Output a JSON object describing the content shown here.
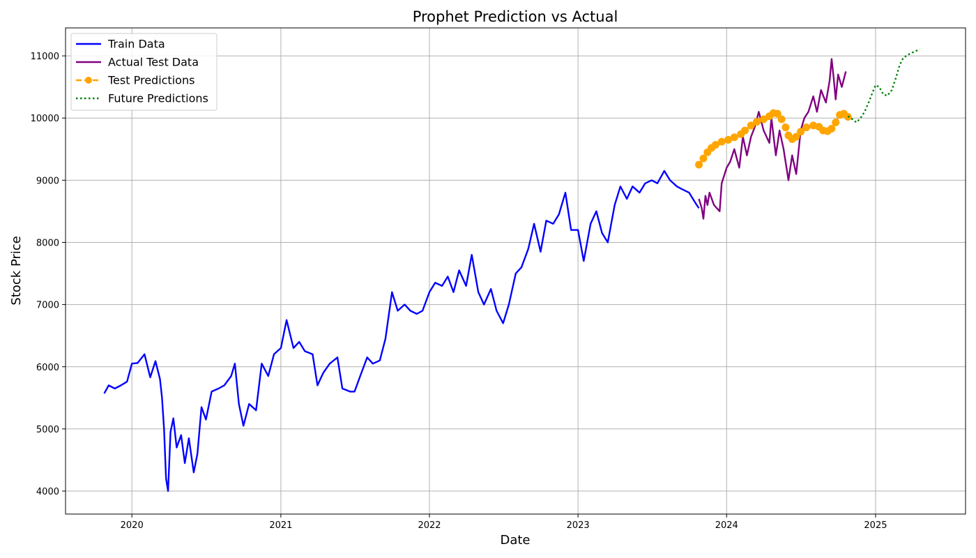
{
  "chart_data": {
    "type": "line",
    "title": "Prophet Prediction vs Actual",
    "xlabel": "Date",
    "ylabel": "Stock Price",
    "x_axis_type": "date",
    "xlim": [
      "2019-07-22",
      "2025-08-10"
    ],
    "ylim": [
      3630,
      11450
    ],
    "x_ticks": [
      "2020",
      "2021",
      "2022",
      "2023",
      "2024",
      "2025"
    ],
    "y_ticks": [
      "4000",
      "5000",
      "6000",
      "7000",
      "8000",
      "9000",
      "10000",
      "11000"
    ],
    "grid": true,
    "legend_position": "top-left",
    "series": [
      {
        "name": "Train Data",
        "color": "#0000ff",
        "style": "solid",
        "points": [
          [
            "2019-10-25",
            5570
          ],
          [
            "2019-11-05",
            5700
          ],
          [
            "2019-11-20",
            5650
          ],
          [
            "2019-12-05",
            5700
          ],
          [
            "2019-12-20",
            5760
          ],
          [
            "2020-01-01",
            6050
          ],
          [
            "2020-01-15",
            6060
          ],
          [
            "2020-02-01",
            6200
          ],
          [
            "2020-02-15",
            5830
          ],
          [
            "2020-02-28",
            6090
          ],
          [
            "2020-03-10",
            5800
          ],
          [
            "2020-03-15",
            5500
          ],
          [
            "2020-03-20",
            5000
          ],
          [
            "2020-03-25",
            4200
          ],
          [
            "2020-03-30",
            4000
          ],
          [
            "2020-04-05",
            4950
          ],
          [
            "2020-04-12",
            5170
          ],
          [
            "2020-04-20",
            4700
          ],
          [
            "2020-05-01",
            4900
          ],
          [
            "2020-05-10",
            4450
          ],
          [
            "2020-05-20",
            4850
          ],
          [
            "2020-06-01",
            4300
          ],
          [
            "2020-06-10",
            4600
          ],
          [
            "2020-06-20",
            5350
          ],
          [
            "2020-07-01",
            5150
          ],
          [
            "2020-07-15",
            5600
          ],
          [
            "2020-08-01",
            5650
          ],
          [
            "2020-08-15",
            5700
          ],
          [
            "2020-09-01",
            5850
          ],
          [
            "2020-09-10",
            6050
          ],
          [
            "2020-09-20",
            5400
          ],
          [
            "2020-10-01",
            5050
          ],
          [
            "2020-10-15",
            5400
          ],
          [
            "2020-11-01",
            5300
          ],
          [
            "2020-11-15",
            6050
          ],
          [
            "2020-12-01",
            5850
          ],
          [
            "2020-12-15",
            6200
          ],
          [
            "2021-01-01",
            6300
          ],
          [
            "2021-01-15",
            6750
          ],
          [
            "2021-02-01",
            6300
          ],
          [
            "2021-02-15",
            6400
          ],
          [
            "2021-03-01",
            6250
          ],
          [
            "2021-03-20",
            6200
          ],
          [
            "2021-04-01",
            5700
          ],
          [
            "2021-04-15",
            5900
          ],
          [
            "2021-05-01",
            6050
          ],
          [
            "2021-05-20",
            6150
          ],
          [
            "2021-06-01",
            5650
          ],
          [
            "2021-06-20",
            5600
          ],
          [
            "2021-07-01",
            5600
          ],
          [
            "2021-07-15",
            5850
          ],
          [
            "2021-08-01",
            6150
          ],
          [
            "2021-08-15",
            6050
          ],
          [
            "2021-09-01",
            6100
          ],
          [
            "2021-09-15",
            6450
          ],
          [
            "2021-10-01",
            7200
          ],
          [
            "2021-10-15",
            6900
          ],
          [
            "2021-11-01",
            7000
          ],
          [
            "2021-11-15",
            6900
          ],
          [
            "2021-12-01",
            6850
          ],
          [
            "2021-12-15",
            6900
          ],
          [
            "2022-01-01",
            7200
          ],
          [
            "2022-01-15",
            7350
          ],
          [
            "2022-02-01",
            7300
          ],
          [
            "2022-02-15",
            7450
          ],
          [
            "2022-03-01",
            7200
          ],
          [
            "2022-03-15",
            7550
          ],
          [
            "2022-04-01",
            7300
          ],
          [
            "2022-04-15",
            7800
          ],
          [
            "2022-05-01",
            7200
          ],
          [
            "2022-05-15",
            7000
          ],
          [
            "2022-06-01",
            7250
          ],
          [
            "2022-06-15",
            6900
          ],
          [
            "2022-07-01",
            6700
          ],
          [
            "2022-07-15",
            7000
          ],
          [
            "2022-08-01",
            7500
          ],
          [
            "2022-08-15",
            7600
          ],
          [
            "2022-09-01",
            7900
          ],
          [
            "2022-09-15",
            8300
          ],
          [
            "2022-10-01",
            7850
          ],
          [
            "2022-10-15",
            8350
          ],
          [
            "2022-11-01",
            8300
          ],
          [
            "2022-11-15",
            8450
          ],
          [
            "2022-12-01",
            8800
          ],
          [
            "2022-12-15",
            8200
          ],
          [
            "2023-01-01",
            8200
          ],
          [
            "2023-01-15",
            7700
          ],
          [
            "2023-02-01",
            8300
          ],
          [
            "2023-02-15",
            8500
          ],
          [
            "2023-03-01",
            8150
          ],
          [
            "2023-03-15",
            8000
          ],
          [
            "2023-04-01",
            8600
          ],
          [
            "2023-04-15",
            8900
          ],
          [
            "2023-05-01",
            8700
          ],
          [
            "2023-05-15",
            8900
          ],
          [
            "2023-06-01",
            8800
          ],
          [
            "2023-06-15",
            8950
          ],
          [
            "2023-07-01",
            9000
          ],
          [
            "2023-07-15",
            8950
          ],
          [
            "2023-08-01",
            9150
          ],
          [
            "2023-08-15",
            9000
          ],
          [
            "2023-09-01",
            8900
          ],
          [
            "2023-09-15",
            8850
          ],
          [
            "2023-10-01",
            8800
          ],
          [
            "2023-10-15",
            8650
          ],
          [
            "2023-10-25",
            8550
          ]
        ]
      },
      {
        "name": "Actual Test Data",
        "color": "#800080",
        "style": "solid",
        "points": [
          [
            "2023-10-25",
            8700
          ],
          [
            "2023-11-01",
            8550
          ],
          [
            "2023-11-05",
            8380
          ],
          [
            "2023-11-10",
            8750
          ],
          [
            "2023-11-15",
            8600
          ],
          [
            "2023-11-20",
            8800
          ],
          [
            "2023-12-01",
            8600
          ],
          [
            "2023-12-15",
            8500
          ],
          [
            "2023-12-20",
            8950
          ],
          [
            "2024-01-01",
            9200
          ],
          [
            "2024-01-10",
            9300
          ],
          [
            "2024-01-20",
            9500
          ],
          [
            "2024-02-01",
            9200
          ],
          [
            "2024-02-10",
            9700
          ],
          [
            "2024-02-20",
            9400
          ],
          [
            "2024-03-01",
            9700
          ],
          [
            "2024-03-10",
            9850
          ],
          [
            "2024-03-20",
            10100
          ],
          [
            "2024-04-01",
            9800
          ],
          [
            "2024-04-15",
            9600
          ],
          [
            "2024-04-20",
            10000
          ],
          [
            "2024-05-01",
            9400
          ],
          [
            "2024-05-10",
            9800
          ],
          [
            "2024-05-20",
            9500
          ],
          [
            "2024-06-01",
            9000
          ],
          [
            "2024-06-10",
            9400
          ],
          [
            "2024-06-20",
            9100
          ],
          [
            "2024-07-01",
            9800
          ],
          [
            "2024-07-10",
            10000
          ],
          [
            "2024-07-20",
            10100
          ],
          [
            "2024-08-01",
            10350
          ],
          [
            "2024-08-10",
            10100
          ],
          [
            "2024-08-20",
            10450
          ],
          [
            "2024-09-01",
            10250
          ],
          [
            "2024-09-10",
            10600
          ],
          [
            "2024-09-15",
            10950
          ],
          [
            "2024-09-20",
            10650
          ],
          [
            "2024-09-25",
            10300
          ],
          [
            "2024-10-01",
            10700
          ],
          [
            "2024-10-10",
            10500
          ],
          [
            "2024-10-20",
            10750
          ]
        ]
      },
      {
        "name": "Test Predictions",
        "color": "#ffa500",
        "style": "dashed-markers",
        "points": [
          [
            "2023-10-25",
            9250
          ],
          [
            "2023-11-05",
            9350
          ],
          [
            "2023-11-15",
            9450
          ],
          [
            "2023-11-25",
            9520
          ],
          [
            "2023-12-05",
            9570
          ],
          [
            "2023-12-20",
            9620
          ],
          [
            "2024-01-05",
            9650
          ],
          [
            "2024-01-20",
            9690
          ],
          [
            "2024-02-05",
            9740
          ],
          [
            "2024-02-15",
            9800
          ],
          [
            "2024-03-01",
            9880
          ],
          [
            "2024-03-15",
            9940
          ],
          [
            "2024-04-01",
            9980
          ],
          [
            "2024-04-15",
            10030
          ],
          [
            "2024-04-25",
            10080
          ],
          [
            "2024-05-05",
            10070
          ],
          [
            "2024-05-15",
            9980
          ],
          [
            "2024-05-25",
            9850
          ],
          [
            "2024-06-01",
            9720
          ],
          [
            "2024-06-10",
            9660
          ],
          [
            "2024-06-20",
            9700
          ],
          [
            "2024-07-01",
            9780
          ],
          [
            "2024-07-15",
            9850
          ],
          [
            "2024-08-01",
            9880
          ],
          [
            "2024-08-15",
            9860
          ],
          [
            "2024-08-25",
            9800
          ],
          [
            "2024-09-05",
            9790
          ],
          [
            "2024-09-15",
            9830
          ],
          [
            "2024-09-25",
            9930
          ],
          [
            "2024-10-05",
            10050
          ],
          [
            "2024-10-15",
            10070
          ],
          [
            "2024-10-25",
            10020
          ]
        ]
      },
      {
        "name": "Future Predictions",
        "color": "#008000",
        "style": "dotted",
        "points": [
          [
            "2024-10-25",
            10030
          ],
          [
            "2024-11-05",
            9980
          ],
          [
            "2024-11-15",
            9930
          ],
          [
            "2024-11-25",
            10000
          ],
          [
            "2024-12-05",
            10100
          ],
          [
            "2024-12-15",
            10250
          ],
          [
            "2024-12-25",
            10420
          ],
          [
            "2025-01-01",
            10530
          ],
          [
            "2025-01-10",
            10500
          ],
          [
            "2025-01-20",
            10380
          ],
          [
            "2025-01-30",
            10360
          ],
          [
            "2025-02-10",
            10450
          ],
          [
            "2025-02-20",
            10650
          ],
          [
            "2025-03-01",
            10850
          ],
          [
            "2025-03-10",
            10970
          ],
          [
            "2025-03-25",
            11030
          ],
          [
            "2025-04-10",
            11080
          ],
          [
            "2025-04-20",
            11100
          ]
        ]
      }
    ]
  }
}
